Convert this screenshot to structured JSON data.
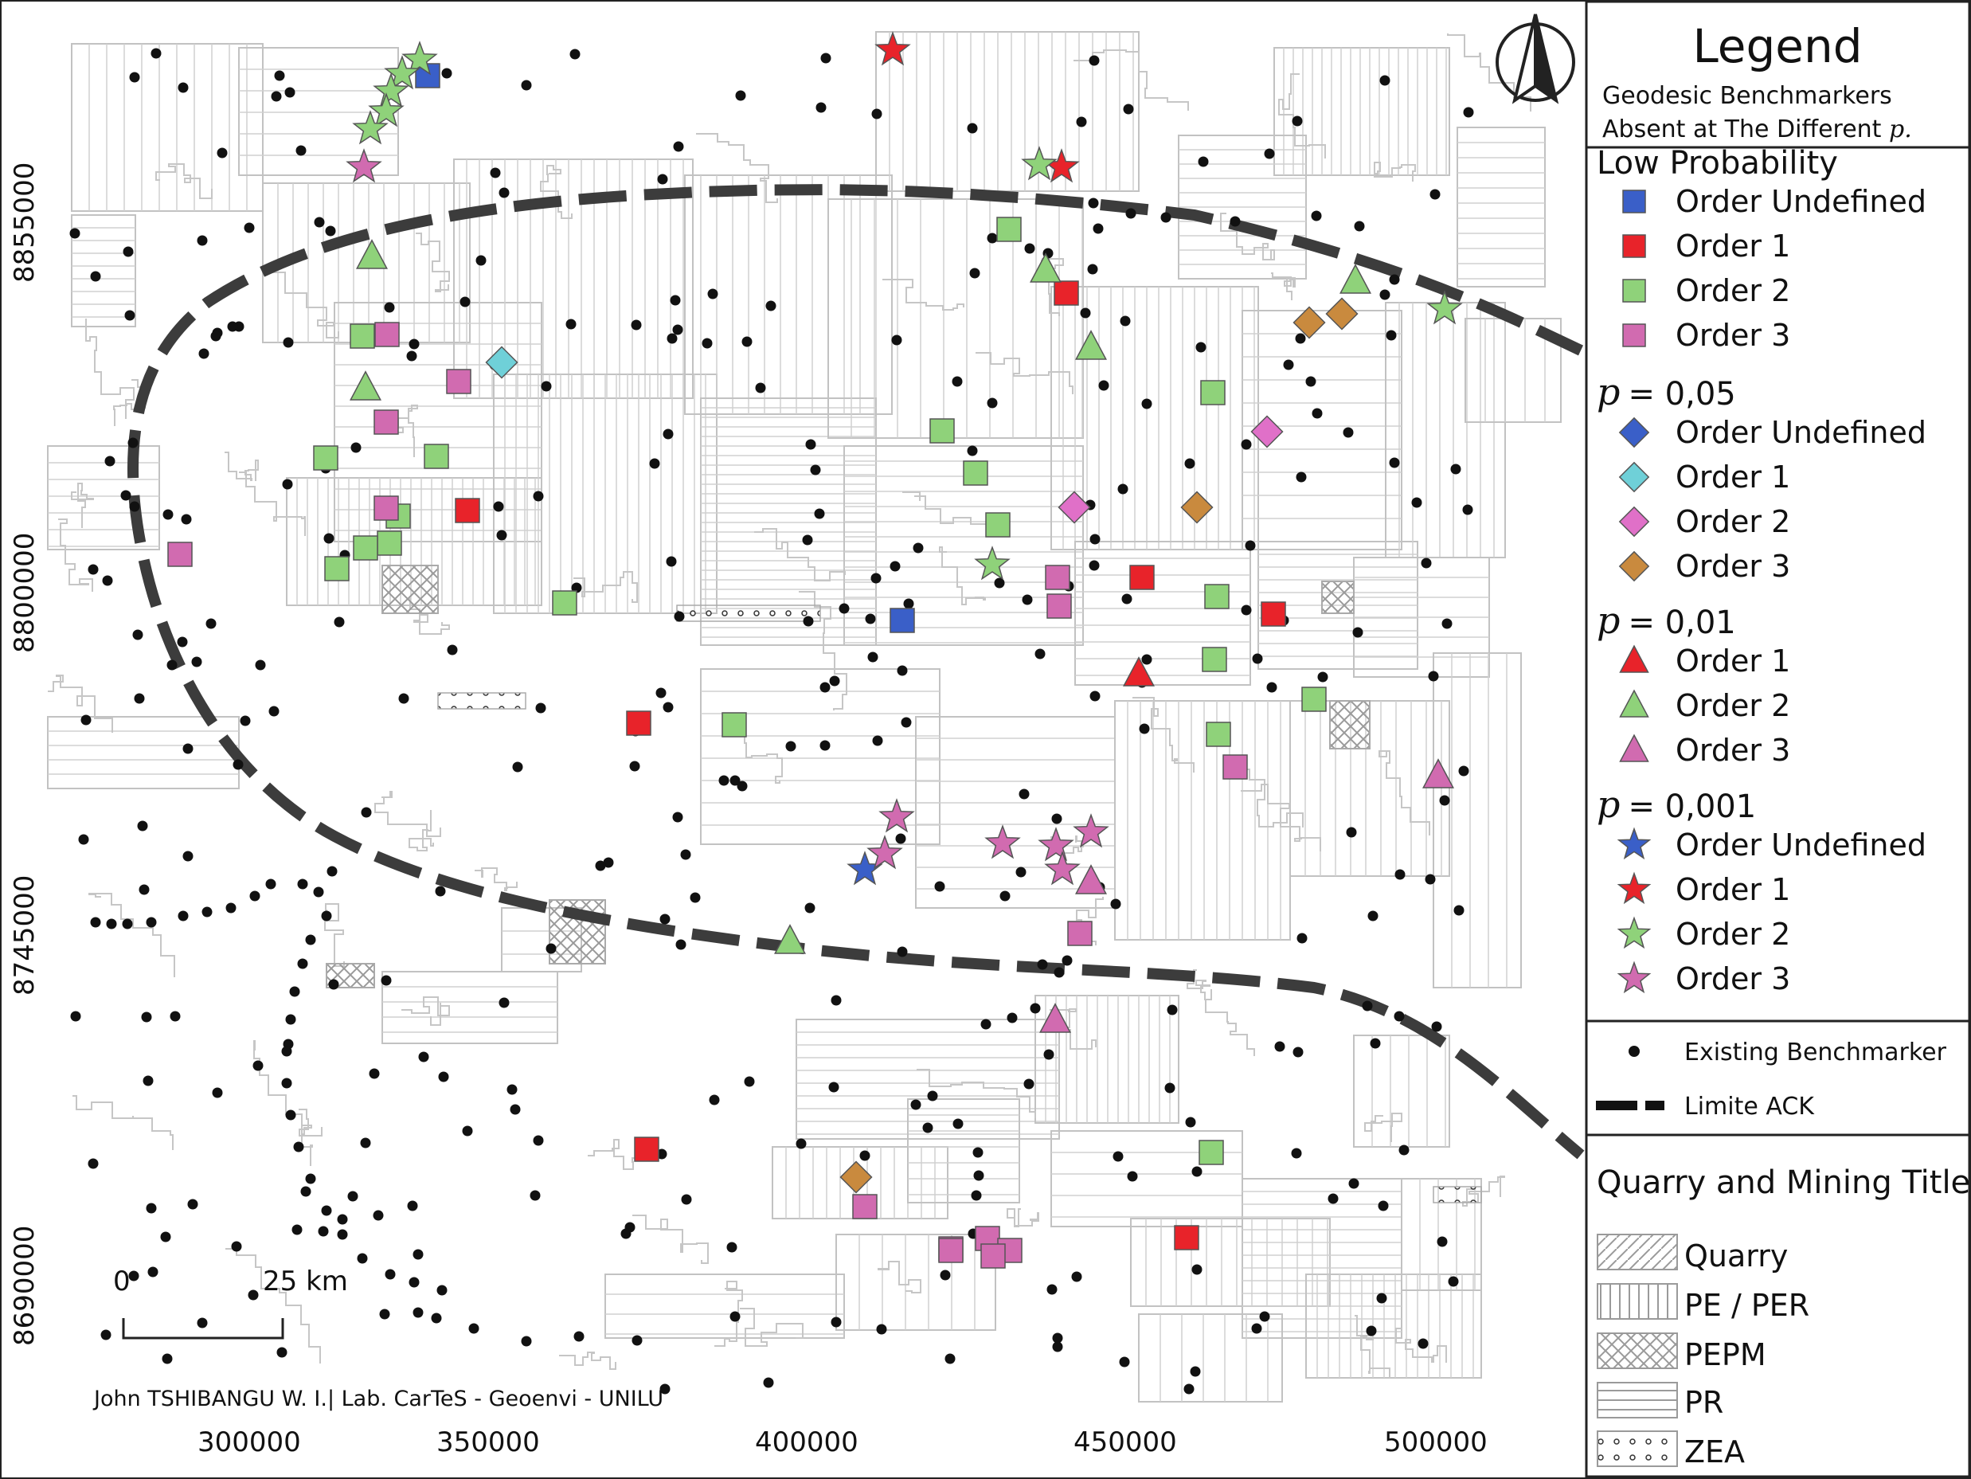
{
  "legend": {
    "title": "Legend",
    "subtitle_line1": "Geodesic Benchmarkers",
    "subtitle_line2": "Absent at The Different",
    "subtitle_p": "p.",
    "groups": [
      {
        "heading": "Low Probability",
        "heading_p": "",
        "heading_value": "",
        "shape": "square",
        "items": [
          {
            "label": "Order Undefined",
            "color": "#3a5fc8"
          },
          {
            "label": "Order 1",
            "color": "#e8232a"
          },
          {
            "label": "Order 2",
            "color": "#8fd27a"
          },
          {
            "label": "Order 3",
            "color": "#d16bb0"
          }
        ]
      },
      {
        "heading": "",
        "heading_p": "p",
        "heading_value": "= 0,05",
        "shape": "diamond",
        "items": [
          {
            "label": "Order Undefined",
            "color": "#3a5fc8"
          },
          {
            "label": "Order 1",
            "color": "#6fd0d8"
          },
          {
            "label": "Order 2",
            "color": "#e070c8"
          },
          {
            "label": "Order 3",
            "color": "#c98a3e"
          }
        ]
      },
      {
        "heading": "",
        "heading_p": "p",
        "heading_value": "= 0,01",
        "shape": "triangle",
        "items": [
          {
            "label": "Order 1",
            "color": "#e8232a"
          },
          {
            "label": "Order 2",
            "color": "#8fd27a"
          },
          {
            "label": "Order 3",
            "color": "#d16bb0"
          }
        ]
      },
      {
        "heading": "",
        "heading_p": "p",
        "heading_value": "= 0,001",
        "shape": "star",
        "items": [
          {
            "label": "Order Undefined",
            "color": "#3a5fc8"
          },
          {
            "label": "Order 1",
            "color": "#e8232a"
          },
          {
            "label": "Order 2",
            "color": "#8fd27a"
          },
          {
            "label": "Order 3",
            "color": "#d16bb0"
          }
        ]
      }
    ],
    "existing_label": "Existing Benchmarker",
    "limit_label": "Limite ACK",
    "titles_heading": "Quarry and Mining Titles",
    "titles": [
      "Quarry",
      "PE / PER",
      "PEPM",
      "PR",
      "ZEA"
    ]
  },
  "map": {
    "x_ticks": [
      "300000",
      "350000",
      "400000",
      "450000",
      "500000"
    ],
    "y_ticks": [
      "8855000",
      "8800000",
      "8745000",
      "8690000"
    ],
    "scale_zero": "0",
    "scale_label": "25 km",
    "credit": "John TSHIBANGU W. I.| Lab. CarTeS - Geoenvi - UNILU"
  }
}
